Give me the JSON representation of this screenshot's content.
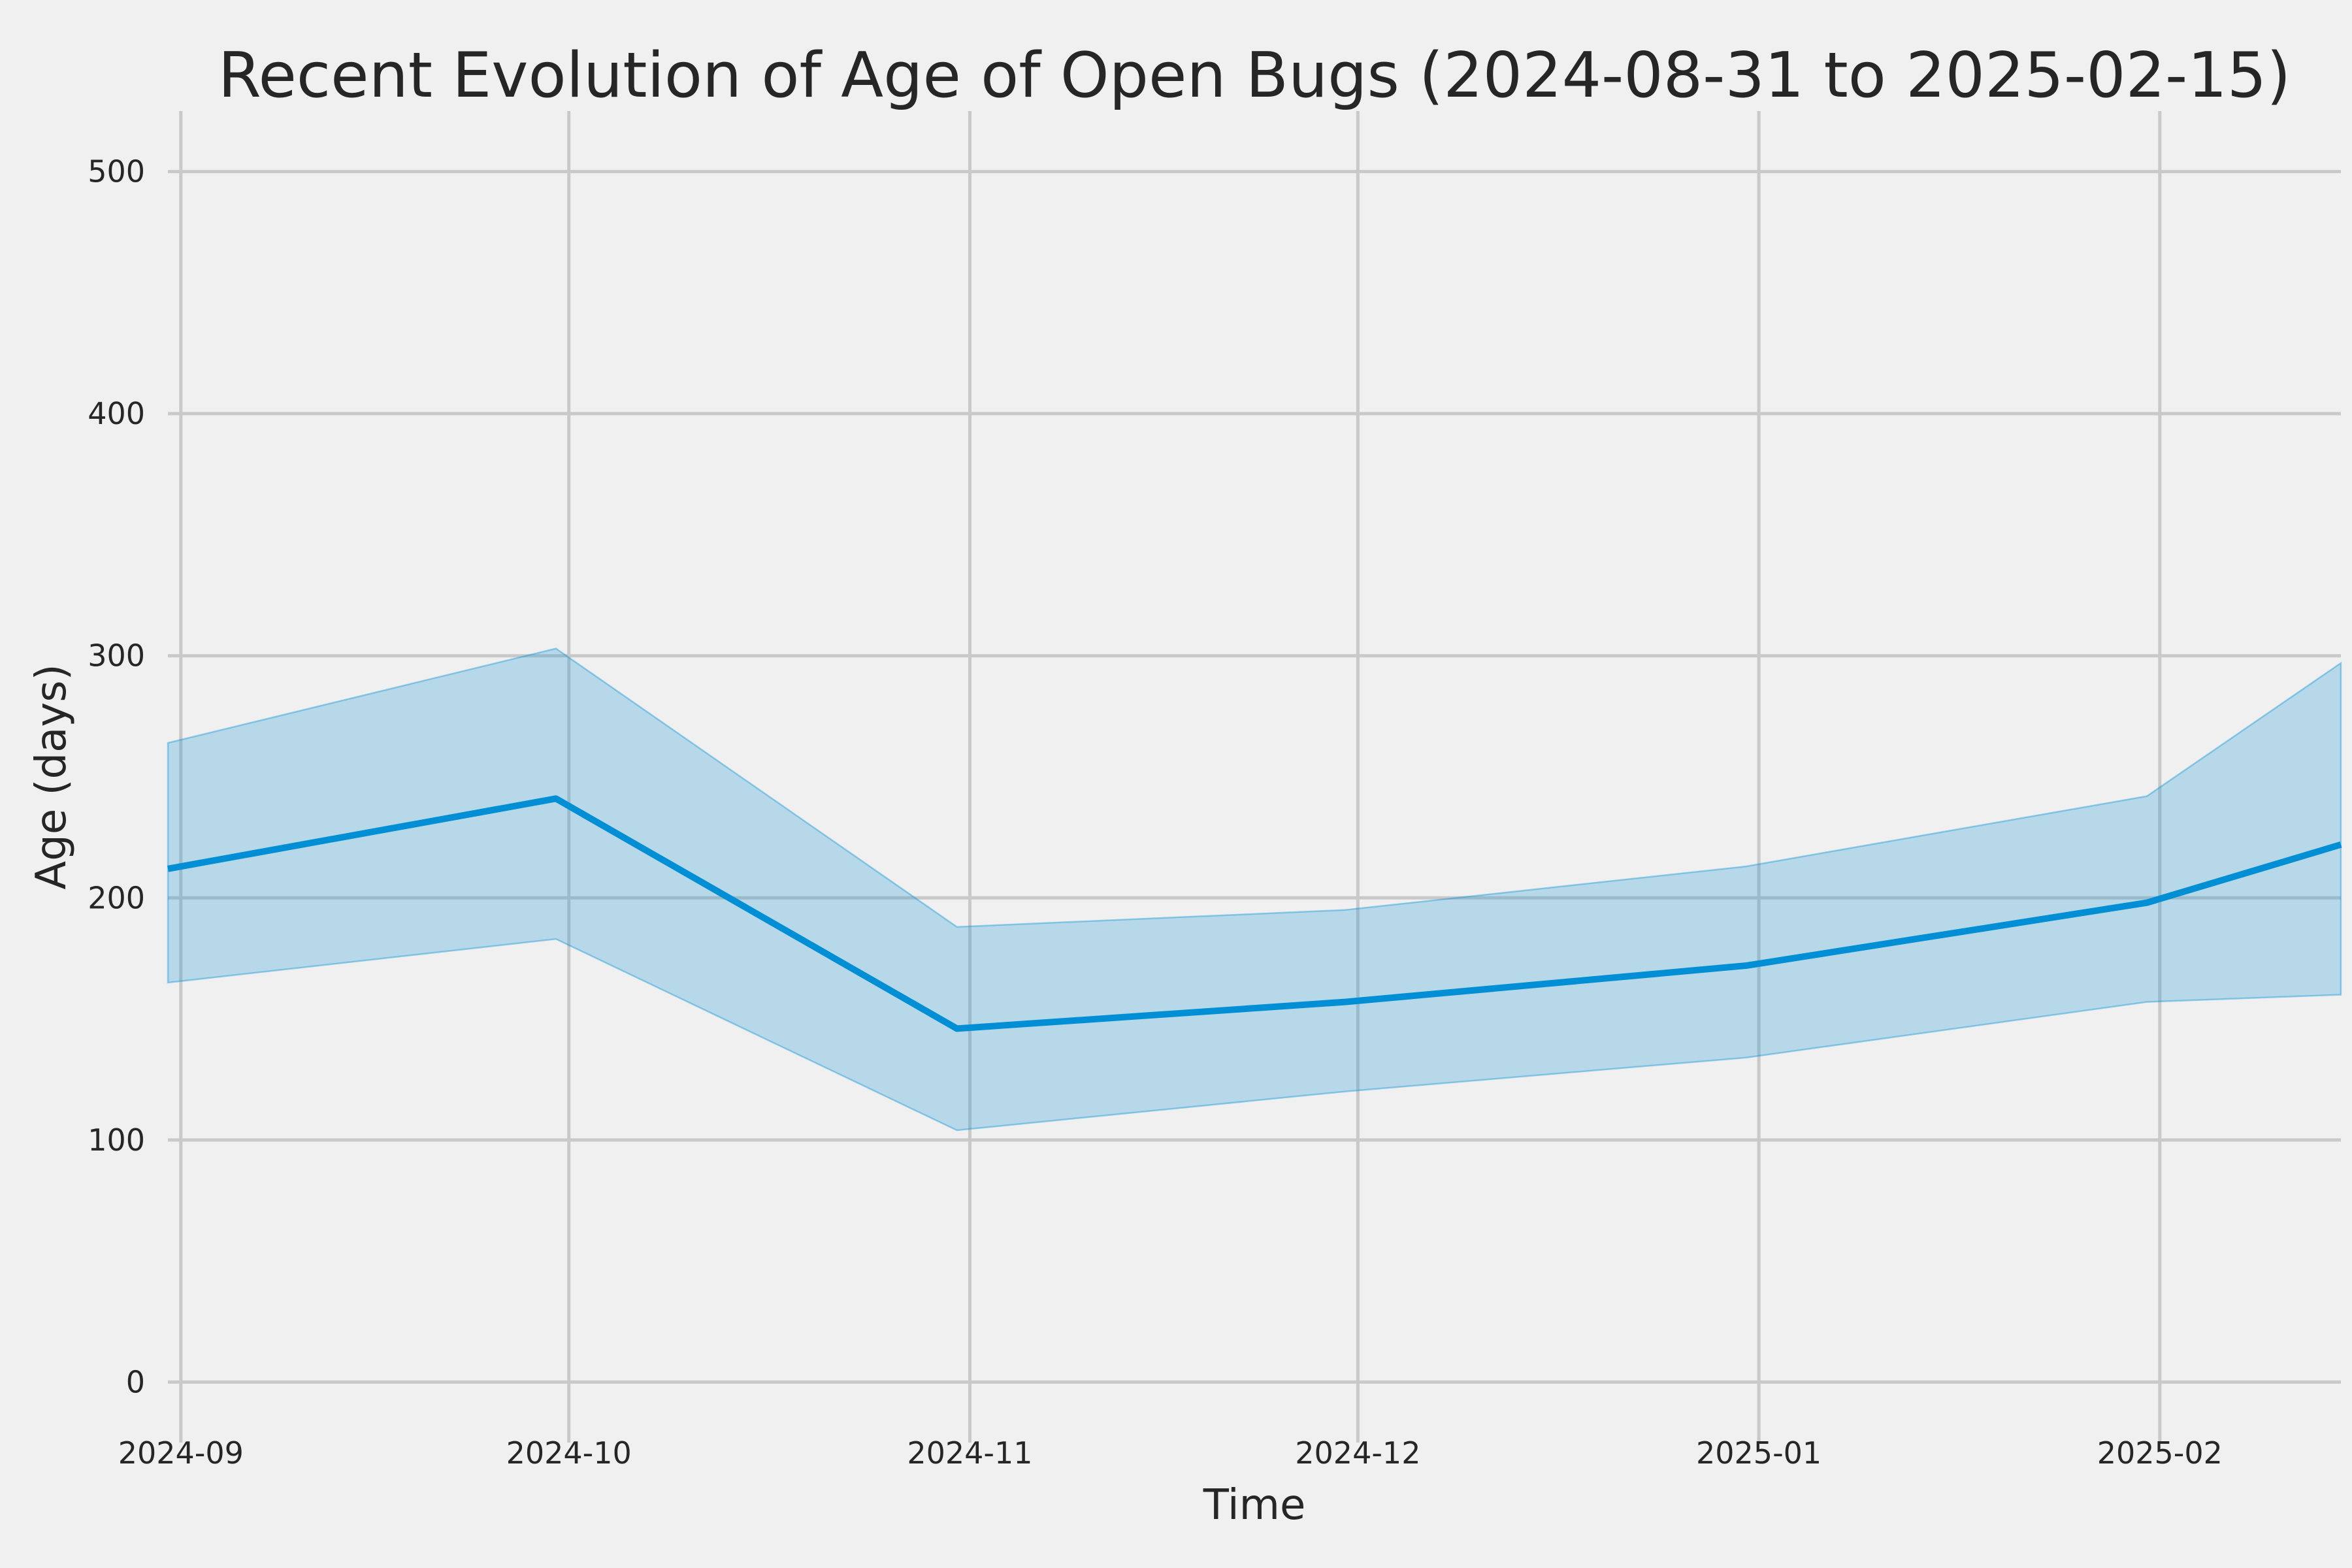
{
  "title": "Recent Evolution of Age of Open Bugs (2024-08-31 to 2025-02-15)",
  "style": {
    "background": "#f0f0f0",
    "grid_color": "#c9c9c9",
    "text_color": "#262626",
    "line_color": "#008fd5",
    "band_fill_rgba": "rgba(0,143,213,0.24)",
    "band_edge_rgba": "rgba(0,143,213,0.38)"
  },
  "chart_data": {
    "type": "line",
    "title": "Recent Evolution of Age of Open Bugs (2024-08-31 to 2025-02-15)",
    "xlabel": "Time",
    "ylabel": "Age (days)",
    "x_dates": [
      "2024-08-31",
      "2024-09-30",
      "2024-10-31",
      "2024-11-30",
      "2024-12-31",
      "2025-01-31",
      "2025-02-15"
    ],
    "x_days_from_start": [
      0,
      30,
      61,
      91,
      122,
      153,
      168
    ],
    "x_range_days": [
      0,
      168
    ],
    "series": [
      {
        "name": "mean_age",
        "role": "line",
        "values": [
          212,
          241,
          146,
          157,
          172,
          198,
          222
        ]
      },
      {
        "name": "band_lower",
        "role": "band-lower",
        "values": [
          165,
          183,
          104,
          120,
          134,
          157,
          160
        ]
      },
      {
        "name": "band_upper",
        "role": "band-upper",
        "values": [
          264,
          303,
          188,
          195,
          213,
          242,
          297
        ]
      }
    ],
    "x_ticks": {
      "labels": [
        "2024-09",
        "2024-10",
        "2024-11",
        "2024-12",
        "2025-01",
        "2025-02"
      ],
      "days_from_start": [
        1,
        31,
        62,
        92,
        123,
        154
      ]
    },
    "y_ticks": [
      0,
      100,
      200,
      300,
      400,
      500
    ],
    "ylim": [
      -25,
      525
    ],
    "grid": true,
    "legend_position": "none"
  }
}
